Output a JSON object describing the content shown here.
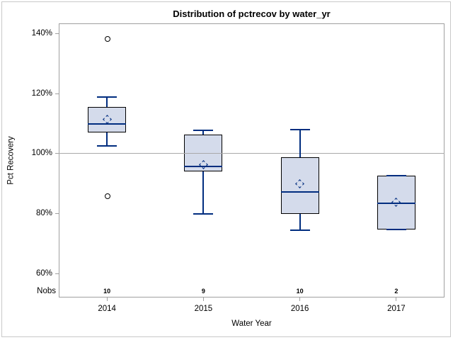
{
  "figure": {
    "title": "Distribution of pctrecov by water_yr"
  },
  "chart_data": {
    "type": "box",
    "title": "Distribution of pctrecov by water_yr",
    "xlabel": "Water Year",
    "ylabel": "Pct Recovery",
    "categories": [
      "2014",
      "2015",
      "2016",
      "2017"
    ],
    "nobs_label": "Nobs",
    "nobs": [
      "10",
      "9",
      "10",
      "2"
    ],
    "y_axis": {
      "tick_values": [
        140,
        120,
        100,
        80,
        60
      ],
      "tick_labels": [
        "140%",
        "120%",
        "100%",
        "80%",
        "60%"
      ],
      "range_top": 143.5,
      "range_bottom": 52,
      "grid": false
    },
    "reference_line_y": 100,
    "legend": "none",
    "series": [
      {
        "category": "2014",
        "whisker_low": 102.5,
        "q1": 107.0,
        "median": 110.0,
        "q3": 115.5,
        "whisker_high": 119.0,
        "mean": 111.5,
        "outliers": [
          138.5,
          86.0
        ]
      },
      {
        "category": "2015",
        "whisker_low": 80.0,
        "q1": 94.2,
        "median": 95.7,
        "q3": 106.4,
        "whisker_high": 107.7,
        "mean": 96.4,
        "outliers": []
      },
      {
        "category": "2016",
        "whisker_low": 74.4,
        "q1": 80.0,
        "median": 87.3,
        "q3": 98.9,
        "whisker_high": 108.1,
        "mean": 90.0,
        "outliers": []
      },
      {
        "category": "2017",
        "whisker_low": 74.6,
        "q1": 74.6,
        "median": 83.4,
        "q3": 92.7,
        "whisker_high": 92.7,
        "mean": 83.7,
        "outliers": []
      }
    ],
    "colors": {
      "box_fill": "#d4dbeb",
      "box_border": "#000000",
      "line": "#002d7f",
      "outlier": "#000000",
      "axis": "#a0a0a0",
      "reference_line": "#a9a9a9",
      "text": "#000000",
      "figure_border": "#c9c9c9",
      "background": "#ffffff"
    }
  }
}
